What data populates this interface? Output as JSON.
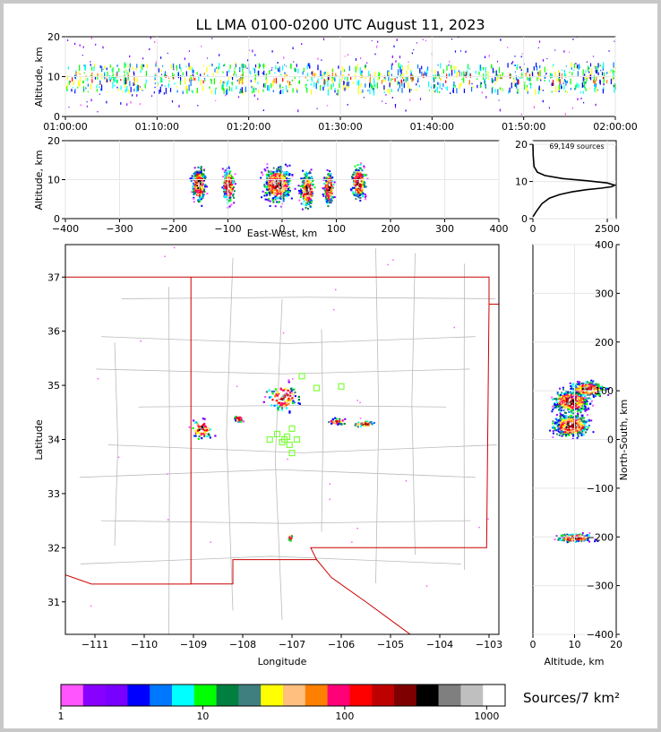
{
  "title": "LL LMA 0100-0200 UTC August 11, 2023",
  "colors": {
    "density": [
      "#ff55ff",
      "#8800ff",
      "#7700ff",
      "#0000ff",
      "#0077ff",
      "#00ffff",
      "#00ff00",
      "#007f3f",
      "#3f7f7f",
      "#ffff00",
      "#ffbf7f",
      "#ff7f00",
      "#ff0077",
      "#ff0000",
      "#bf0000",
      "#7f0000",
      "#000000",
      "#7f7f7f",
      "#bfbfbf",
      "#ffffff"
    ],
    "state_border": "#cc0000",
    "county": "#bbbbbb",
    "station": "#7fff3f"
  },
  "chart_data": [
    {
      "panel": "time-height",
      "type": "scatter",
      "ylabel": "Altitude, km",
      "xlim_minutes": [
        0,
        60
      ],
      "ylim": [
        0,
        20
      ],
      "x_ticks": [
        "01:00:00",
        "01:10:00",
        "01:20:00",
        "01:30:00",
        "01:40:00",
        "01:50:00",
        "02:00:00"
      ],
      "y_ticks": [
        "0",
        "10",
        "20"
      ],
      "core_altitude_km": [
        6,
        13
      ]
    },
    {
      "panel": "east-west-height",
      "type": "heatmap",
      "xlabel": "East-West, km",
      "ylabel": "Altitude, km",
      "xlim": [
        -400,
        400
      ],
      "ylim": [
        0,
        20
      ],
      "x_ticks": [
        "−400",
        "−300",
        "−200",
        "−100",
        "0",
        "100",
        "200",
        "300",
        "400"
      ],
      "y_ticks": [
        "0",
        "10",
        "20"
      ],
      "clusters": [
        {
          "x": -155,
          "z": 9,
          "w": 30
        },
        {
          "x": -100,
          "z": 8.5,
          "w": 25
        },
        {
          "x": -10,
          "z": 9,
          "w": 60
        },
        {
          "x": 45,
          "z": 7.5,
          "w": 30
        },
        {
          "x": 85,
          "z": 8,
          "w": 22
        },
        {
          "x": 140,
          "z": 9.5,
          "w": 30
        }
      ]
    },
    {
      "panel": "altitude-histogram",
      "type": "line",
      "annotation": "69,149 sources",
      "xlim": [
        0,
        2800
      ],
      "ylim": [
        0,
        21
      ],
      "x_ticks": [
        "0",
        "2500"
      ],
      "y_ticks": [
        "0",
        "10",
        "20"
      ],
      "profile": [
        [
          0,
          0.5
        ],
        [
          120,
          2
        ],
        [
          300,
          4
        ],
        [
          550,
          5.5
        ],
        [
          900,
          6.5
        ],
        [
          1300,
          7.2
        ],
        [
          1800,
          7.8
        ],
        [
          2300,
          8.2
        ],
        [
          2650,
          8.6
        ],
        [
          2750,
          9
        ],
        [
          2500,
          9.6
        ],
        [
          1800,
          10.2
        ],
        [
          1000,
          10.8
        ],
        [
          400,
          11.6
        ],
        [
          150,
          12.5
        ],
        [
          40,
          14
        ],
        [
          10,
          17
        ],
        [
          0,
          20
        ]
      ]
    },
    {
      "panel": "plan-view",
      "type": "heatmap",
      "xlabel": "Longitude",
      "ylabel": "Latitude",
      "xlim": [
        -111.6,
        -102.8
      ],
      "ylim": [
        30.4,
        37.6
      ],
      "x_ticks": [
        "−111",
        "−110",
        "−109",
        "−108",
        "−107",
        "−106",
        "−105",
        "−104",
        "−103"
      ],
      "y_ticks": [
        "31",
        "32",
        "33",
        "34",
        "35",
        "36",
        "37"
      ],
      "clusters": [
        {
          "lon": -108.85,
          "lat": 34.2,
          "rx": 0.3,
          "ry": 0.25
        },
        {
          "lon": -108.1,
          "lat": 34.4,
          "rx": 0.12,
          "ry": 0.08
        },
        {
          "lon": -107.2,
          "lat": 34.8,
          "rx": 0.45,
          "ry": 0.35
        },
        {
          "lon": -106.1,
          "lat": 34.35,
          "rx": 0.25,
          "ry": 0.08
        },
        {
          "lon": -105.55,
          "lat": 34.3,
          "rx": 0.3,
          "ry": 0.08
        },
        {
          "lon": -107.05,
          "lat": 32.2,
          "rx": 0.05,
          "ry": 0.08
        }
      ],
      "stations": [
        [
          -106.8,
          35.17
        ],
        [
          -106.5,
          34.95
        ],
        [
          -106.0,
          34.98
        ],
        [
          -107.45,
          34.0
        ],
        [
          -107.3,
          34.1
        ],
        [
          -107.2,
          33.95
        ],
        [
          -107.1,
          34.05
        ],
        [
          -107.0,
          34.2
        ],
        [
          -107.05,
          33.9
        ],
        [
          -106.9,
          34.0
        ],
        [
          -107.0,
          33.75
        ],
        [
          -107.15,
          34.0
        ]
      ]
    },
    {
      "panel": "north-south-height",
      "type": "heatmap",
      "xlabel": "Altitude, km",
      "ylabel": "North-South, km",
      "xlim": [
        0,
        20
      ],
      "ylim": [
        -400,
        400
      ],
      "x_ticks": [
        "0",
        "10",
        "20"
      ],
      "y_ticks": [
        "−400",
        "−300",
        "−200",
        "−100",
        "0",
        "100",
        "200",
        "300",
        "400"
      ],
      "clusters": [
        {
          "z": 9,
          "y": 80,
          "h": 40
        },
        {
          "z": 9,
          "y": 30,
          "h": 40
        },
        {
          "z": 13,
          "y": 105,
          "h": 25
        },
        {
          "z": 10,
          "y": -200,
          "h": 15
        }
      ]
    },
    {
      "panel": "colorbar",
      "type": "bar",
      "label": "Sources/7 km²",
      "tick_labels": [
        "1",
        "10",
        "100",
        "1000"
      ]
    }
  ]
}
